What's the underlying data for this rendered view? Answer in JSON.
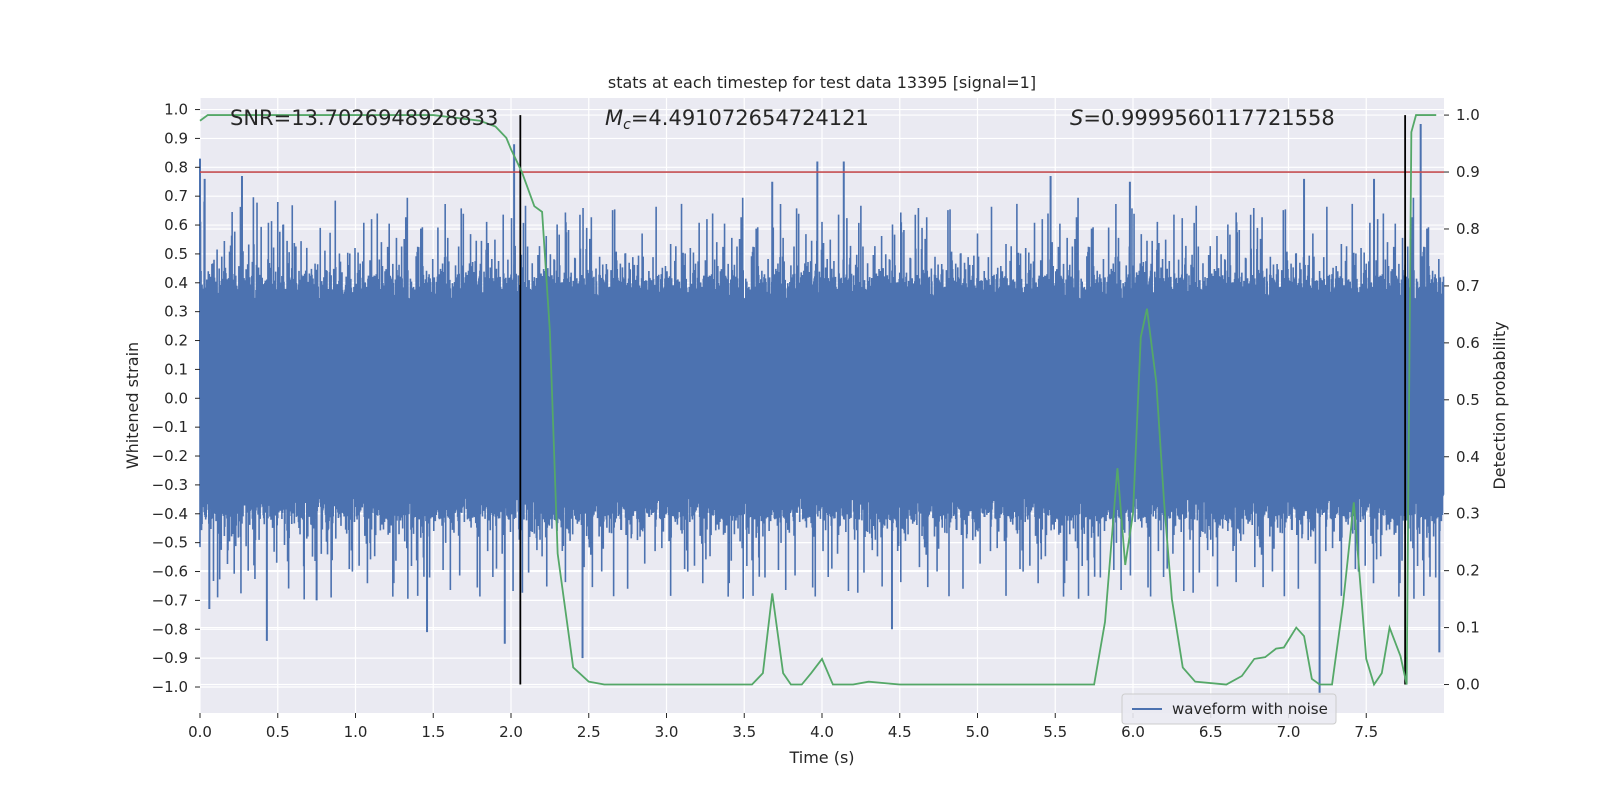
{
  "chart_data": {
    "type": "line",
    "title": "stats at each timestep for test data 13395 [signal=1]",
    "xlabel": "Time (s)",
    "ylabel": "Whitened strain",
    "y2label": "Detection probability",
    "xlim": [
      0.0,
      8.0
    ],
    "ylim": [
      -1.09,
      1.04
    ],
    "y2lim": [
      -0.05,
      1.03
    ],
    "xticks": [
      0.0,
      0.5,
      1.0,
      1.5,
      2.0,
      2.5,
      3.0,
      3.5,
      4.0,
      4.5,
      5.0,
      5.5,
      6.0,
      6.5,
      7.0,
      7.5
    ],
    "xtick_labels": [
      "0.0",
      "0.5",
      "1.0",
      "1.5",
      "2.0",
      "2.5",
      "3.0",
      "3.5",
      "4.0",
      "4.5",
      "5.0",
      "5.5",
      "6.0",
      "6.5",
      "7.0",
      "7.5"
    ],
    "yticks": [
      -1.0,
      -0.9,
      -0.8,
      -0.7,
      -0.6,
      -0.5,
      -0.4,
      -0.3,
      -0.2,
      -0.1,
      0.0,
      0.1,
      0.2,
      0.3,
      0.4,
      0.5,
      0.6,
      0.7,
      0.8,
      0.9,
      1.0
    ],
    "ytick_labels": [
      "−1.0",
      "−0.9",
      "−0.8",
      "−0.7",
      "−0.6",
      "−0.5",
      "−0.4",
      "−0.3",
      "−0.2",
      "−0.1",
      "0.0",
      "0.1",
      "0.2",
      "0.3",
      "0.4",
      "0.5",
      "0.6",
      "0.7",
      "0.8",
      "0.9",
      "1.0"
    ],
    "y2ticks": [
      0.0,
      0.1,
      0.2,
      0.3,
      0.4,
      0.5,
      0.6,
      0.7,
      0.8,
      0.9,
      1.0
    ],
    "y2tick_labels": [
      "0.0",
      "0.1",
      "0.2",
      "0.3",
      "0.4",
      "0.5",
      "0.6",
      "0.7",
      "0.8",
      "0.9",
      "1.0"
    ],
    "annotations": {
      "snr": "SNR=13.7026948928833",
      "mc_symbol": "M",
      "mc_sub": "c",
      "mc_value": "=4.491072654724121",
      "s_symbol": "S",
      "s_value": "=0.9999560117721558"
    },
    "legend": {
      "position": "lower-right",
      "entries": [
        "waveform with noise"
      ]
    },
    "colors": {
      "background": "#eaeaf2",
      "grid": "#ffffff",
      "strain": "#4c72b0",
      "probability": "#55a868",
      "threshold": "#c44e52",
      "markers": "#000000"
    },
    "series": [
      {
        "name": "waveform with noise",
        "kind": "noise-band",
        "envelope_typical": 0.42,
        "spikes": [
          {
            "t": 0.0,
            "v": 0.83
          },
          {
            "t": 0.03,
            "v": 0.76
          },
          {
            "t": 0.06,
            "v": -0.73
          },
          {
            "t": 0.27,
            "v": 0.77
          },
          {
            "t": 0.43,
            "v": -0.84
          },
          {
            "t": 0.75,
            "v": -0.7
          },
          {
            "t": 1.46,
            "v": -0.81
          },
          {
            "t": 1.96,
            "v": -0.85
          },
          {
            "t": 2.02,
            "v": 0.88
          },
          {
            "t": 2.46,
            "v": -0.9
          },
          {
            "t": 3.68,
            "v": 0.75
          },
          {
            "t": 3.97,
            "v": 0.82
          },
          {
            "t": 4.14,
            "v": 0.82
          },
          {
            "t": 4.45,
            "v": -0.8
          },
          {
            "t": 5.47,
            "v": 0.77
          },
          {
            "t": 5.98,
            "v": 0.75
          },
          {
            "t": 7.1,
            "v": 0.76
          },
          {
            "t": 7.2,
            "v": -1.02
          },
          {
            "t": 7.55,
            "v": 0.76
          },
          {
            "t": 7.85,
            "v": 0.95
          },
          {
            "t": 7.97,
            "v": -0.88
          }
        ]
      },
      {
        "name": "detection probability",
        "axis": "right",
        "x": [
          0.0,
          0.05,
          0.3,
          1.0,
          1.5,
          1.8,
          1.9,
          1.97,
          2.0,
          2.07,
          2.15,
          2.2,
          2.25,
          2.3,
          2.4,
          2.5,
          2.6,
          2.8,
          3.0,
          3.2,
          3.4,
          3.55,
          3.62,
          3.68,
          3.75,
          3.8,
          3.87,
          3.93,
          4.0,
          4.07,
          4.2,
          4.3,
          4.5,
          4.8,
          5.0,
          5.3,
          5.6,
          5.75,
          5.82,
          5.9,
          5.95,
          6.0,
          6.05,
          6.09,
          6.15,
          6.2,
          6.25,
          6.32,
          6.4,
          6.6,
          6.7,
          6.78,
          6.85,
          6.92,
          6.97,
          7.05,
          7.1,
          7.15,
          7.2,
          7.28,
          7.35,
          7.42,
          7.5,
          7.55,
          7.6,
          7.65,
          7.72,
          7.76,
          7.79,
          7.82,
          7.86,
          7.9,
          7.95
        ],
        "y": [
          0.99,
          1.0,
          1.0,
          1.0,
          1.0,
          0.99,
          0.98,
          0.96,
          0.94,
          0.9,
          0.84,
          0.83,
          0.62,
          0.23,
          0.03,
          0.005,
          0.0,
          0.0,
          0.0,
          0.0,
          0.0,
          0.0,
          0.02,
          0.16,
          0.02,
          0.0,
          0.0,
          0.02,
          0.045,
          0.0,
          0.0,
          0.005,
          0.0,
          0.0,
          0.0,
          0.0,
          0.0,
          0.0,
          0.11,
          0.38,
          0.21,
          0.3,
          0.61,
          0.66,
          0.53,
          0.32,
          0.15,
          0.03,
          0.005,
          0.0,
          0.015,
          0.045,
          0.048,
          0.063,
          0.065,
          0.1,
          0.085,
          0.01,
          0.0,
          0.0,
          0.14,
          0.32,
          0.045,
          0.0,
          0.02,
          0.1,
          0.05,
          0.0,
          0.97,
          1.0,
          1.0,
          1.0,
          1.0
        ]
      }
    ],
    "threshold": {
      "axis": "right",
      "value": 0.9
    },
    "vertical_markers": [
      2.06,
      7.75
    ]
  }
}
